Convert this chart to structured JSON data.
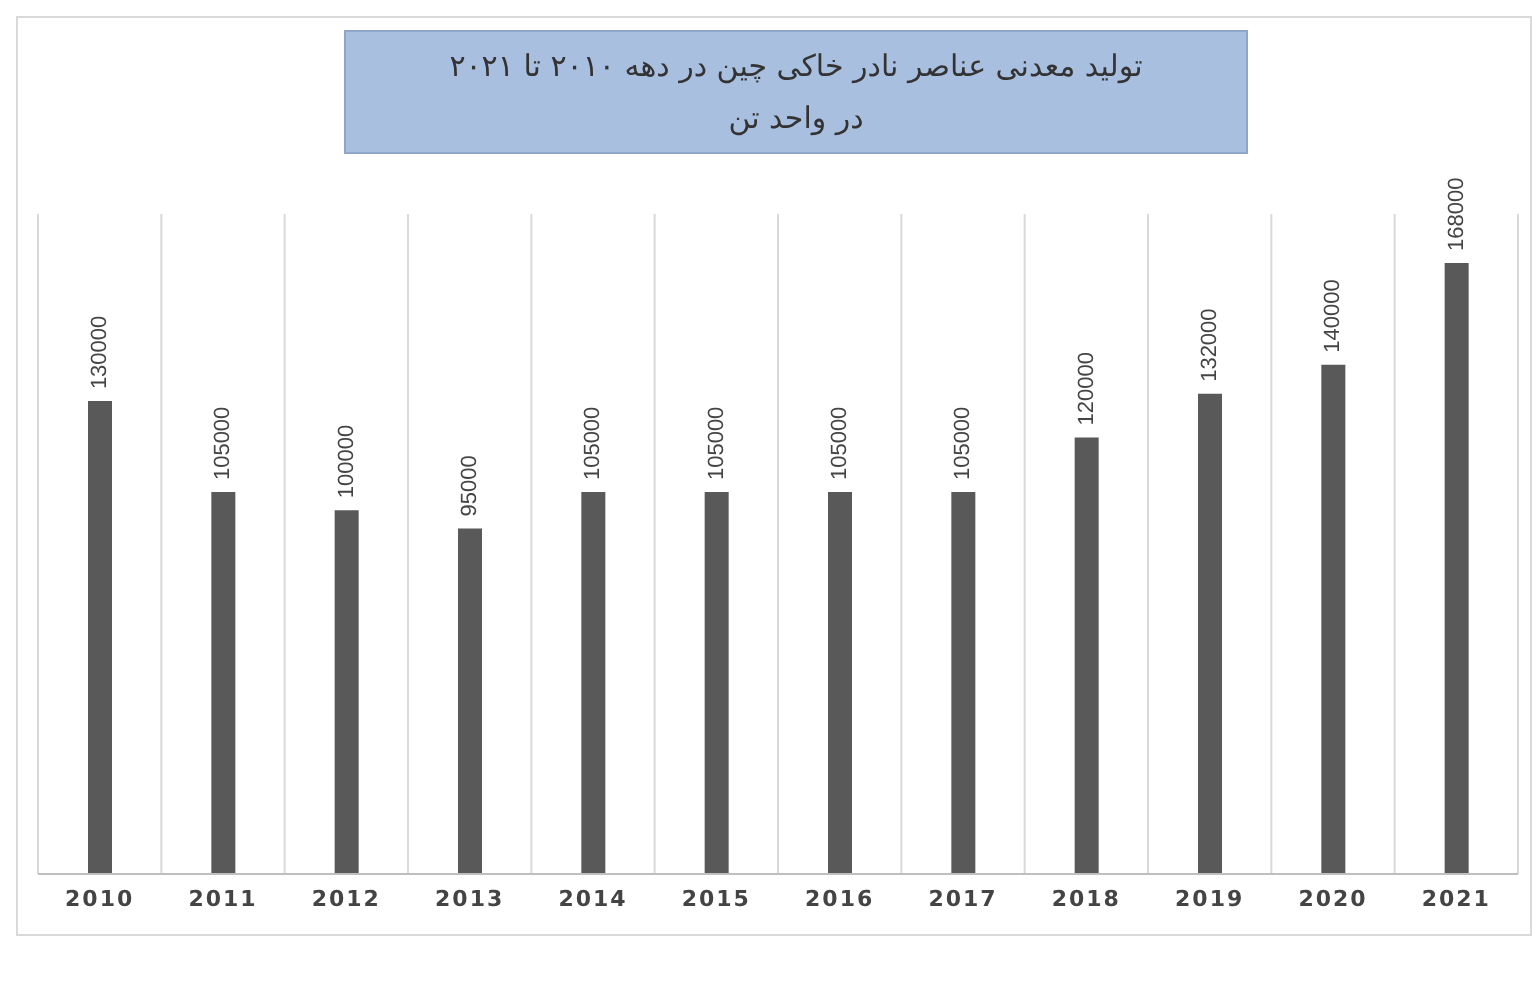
{
  "chart_data": {
    "type": "bar",
    "title": "تولید معدنی عناصر نادر خاکی چین در دهه ۲۰۱۰ تا ۲۰۲۱",
    "subtitle": "در واحد تن",
    "categories": [
      "2010",
      "2011",
      "2012",
      "2013",
      "2014",
      "2015",
      "2016",
      "2017",
      "2018",
      "2019",
      "2020",
      "2021"
    ],
    "values": [
      130000,
      105000,
      100000,
      95000,
      105000,
      105000,
      105000,
      105000,
      120000,
      132000,
      140000,
      168000
    ],
    "color": "#595959",
    "data_labels": true,
    "grid": "x"
  }
}
